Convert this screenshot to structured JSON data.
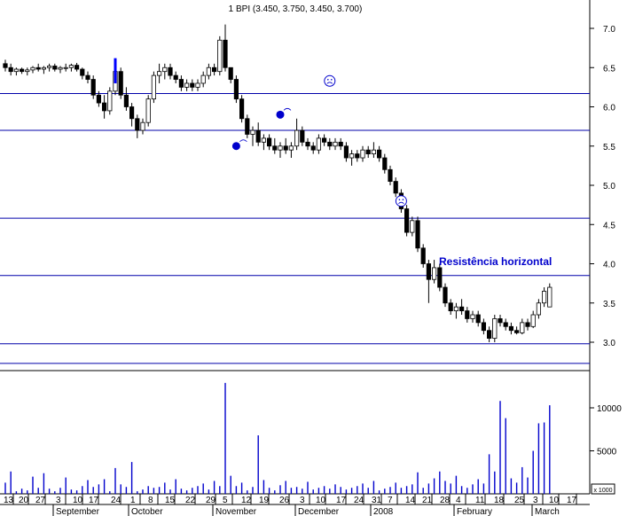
{
  "chart_data": {
    "type": "candlestick",
    "title": "1 BPI (3.450, 3.750, 3.450, 3.700)",
    "price_axis": {
      "min": 2.7,
      "max": 7.2,
      "ticks": [
        "7.0",
        "6.5",
        "6.0",
        "5.5",
        "5.0",
        "4.5",
        "4.0",
        "3.5",
        "3.0"
      ]
    },
    "volume_axis": {
      "min": 0,
      "max": 13500,
      "ticks": [
        "10000",
        "5000"
      ],
      "unit_label": "x 1000"
    },
    "date_labels": [
      "13",
      "20",
      "27",
      "3",
      "10",
      "17",
      "24",
      "1",
      "8",
      "15",
      "22",
      "29",
      "5",
      "12",
      "19",
      "26",
      "3",
      "10",
      "17",
      "24",
      "31",
      "7",
      "14",
      "21",
      "28",
      "4",
      "11",
      "18",
      "25",
      "3",
      "10",
      "17"
    ],
    "month_labels": [
      "September",
      "October",
      "November",
      "December",
      "2008",
      "February",
      "March"
    ],
    "horizontal_lines": [
      6.17,
      5.7,
      4.58,
      3.85,
      2.98,
      2.73
    ],
    "annotation": "Resistência horizontal",
    "signals": [
      {
        "type": "buy-dot",
        "bar": 42,
        "price": 5.5
      },
      {
        "type": "buy-dot",
        "bar": 50,
        "price": 5.9
      },
      {
        "type": "frown-face",
        "bar": 59,
        "price": 6.33
      },
      {
        "type": "frown-face",
        "bar": 72,
        "price": 4.8
      }
    ],
    "markers": [
      {
        "type": "blue-bar",
        "bar": 20,
        "low": 6.3,
        "high": 6.62
      }
    ],
    "candles": [
      [
        6.55,
        6.6,
        6.45,
        6.5
      ],
      [
        6.5,
        6.55,
        6.4,
        6.45
      ],
      [
        6.45,
        6.5,
        6.4,
        6.48
      ],
      [
        6.48,
        6.5,
        6.42,
        6.45
      ],
      [
        6.45,
        6.5,
        6.4,
        6.47
      ],
      [
        6.47,
        6.52,
        6.43,
        6.5
      ],
      [
        6.5,
        6.55,
        6.45,
        6.48
      ],
      [
        6.48,
        6.52,
        6.42,
        6.5
      ],
      [
        6.5,
        6.55,
        6.45,
        6.52
      ],
      [
        6.52,
        6.55,
        6.45,
        6.48
      ],
      [
        6.48,
        6.52,
        6.43,
        6.5
      ],
      [
        6.5,
        6.55,
        6.45,
        6.5
      ],
      [
        6.5,
        6.55,
        6.45,
        6.53
      ],
      [
        6.53,
        6.56,
        6.45,
        6.48
      ],
      [
        6.48,
        6.5,
        6.35,
        6.4
      ],
      [
        6.4,
        6.45,
        6.3,
        6.35
      ],
      [
        6.35,
        6.4,
        6.1,
        6.15
      ],
      [
        6.15,
        6.2,
        6.0,
        6.05
      ],
      [
        6.05,
        6.15,
        5.85,
        5.95
      ],
      [
        5.95,
        6.25,
        5.9,
        6.2
      ],
      [
        6.2,
        6.5,
        6.15,
        6.45
      ],
      [
        6.45,
        6.5,
        6.1,
        6.15
      ],
      [
        6.15,
        6.25,
        5.95,
        6.0
      ],
      [
        6.0,
        6.05,
        5.75,
        5.85
      ],
      [
        5.85,
        5.9,
        5.6,
        5.7
      ],
      [
        5.7,
        5.85,
        5.65,
        5.8
      ],
      [
        5.8,
        6.15,
        5.75,
        6.1
      ],
      [
        6.1,
        6.45,
        6.05,
        6.4
      ],
      [
        6.4,
        6.55,
        6.3,
        6.45
      ],
      [
        6.45,
        6.55,
        6.35,
        6.5
      ],
      [
        6.5,
        6.55,
        6.35,
        6.4
      ],
      [
        6.4,
        6.45,
        6.3,
        6.35
      ],
      [
        6.35,
        6.4,
        6.2,
        6.25
      ],
      [
        6.25,
        6.35,
        6.2,
        6.3
      ],
      [
        6.3,
        6.35,
        6.2,
        6.25
      ],
      [
        6.25,
        6.35,
        6.2,
        6.3
      ],
      [
        6.3,
        6.45,
        6.25,
        6.4
      ],
      [
        6.4,
        6.55,
        6.35,
        6.5
      ],
      [
        6.5,
        6.55,
        6.4,
        6.45
      ],
      [
        6.45,
        6.9,
        6.4,
        6.85
      ],
      [
        6.85,
        7.05,
        6.45,
        6.5
      ],
      [
        6.5,
        6.5,
        6.3,
        6.35
      ],
      [
        6.35,
        6.4,
        6.05,
        6.1
      ],
      [
        6.1,
        6.15,
        5.8,
        5.85
      ],
      [
        5.85,
        5.9,
        5.6,
        5.65
      ],
      [
        5.65,
        5.75,
        5.5,
        5.7
      ],
      [
        5.7,
        5.8,
        5.5,
        5.55
      ],
      [
        5.55,
        5.65,
        5.45,
        5.6
      ],
      [
        5.6,
        5.65,
        5.45,
        5.5
      ],
      [
        5.5,
        5.6,
        5.4,
        5.45
      ],
      [
        5.45,
        5.55,
        5.35,
        5.5
      ],
      [
        5.5,
        5.6,
        5.4,
        5.45
      ],
      [
        5.45,
        5.55,
        5.35,
        5.5
      ],
      [
        5.5,
        5.85,
        5.45,
        5.7
      ],
      [
        5.7,
        5.75,
        5.5,
        5.55
      ],
      [
        5.55,
        5.6,
        5.45,
        5.5
      ],
      [
        5.5,
        5.55,
        5.4,
        5.45
      ],
      [
        5.45,
        5.65,
        5.4,
        5.6
      ],
      [
        5.6,
        5.65,
        5.5,
        5.55
      ],
      [
        5.55,
        5.6,
        5.45,
        5.5
      ],
      [
        5.5,
        5.6,
        5.45,
        5.55
      ],
      [
        5.55,
        5.6,
        5.45,
        5.5
      ],
      [
        5.5,
        5.55,
        5.3,
        5.35
      ],
      [
        5.35,
        5.45,
        5.25,
        5.4
      ],
      [
        5.4,
        5.45,
        5.3,
        5.35
      ],
      [
        5.35,
        5.5,
        5.3,
        5.45
      ],
      [
        5.45,
        5.5,
        5.35,
        5.4
      ],
      [
        5.4,
        5.55,
        5.35,
        5.45
      ],
      [
        5.45,
        5.5,
        5.3,
        5.35
      ],
      [
        5.35,
        5.4,
        5.15,
        5.2
      ],
      [
        5.2,
        5.25,
        5.0,
        5.05
      ],
      [
        5.05,
        5.1,
        4.85,
        4.9
      ],
      [
        4.9,
        4.95,
        4.65,
        4.7
      ],
      [
        4.7,
        4.75,
        4.35,
        4.4
      ],
      [
        4.4,
        4.6,
        4.35,
        4.55
      ],
      [
        4.55,
        4.6,
        4.15,
        4.2
      ],
      [
        4.2,
        4.25,
        3.95,
        4.0
      ],
      [
        4.0,
        4.05,
        3.5,
        3.8
      ],
      [
        3.8,
        4.05,
        3.75,
        3.95
      ],
      [
        3.95,
        4.0,
        3.65,
        3.7
      ],
      [
        3.7,
        3.75,
        3.45,
        3.5
      ],
      [
        3.5,
        3.55,
        3.35,
        3.4
      ],
      [
        3.4,
        3.5,
        3.3,
        3.45
      ],
      [
        3.45,
        3.55,
        3.35,
        3.4
      ],
      [
        3.4,
        3.45,
        3.25,
        3.3
      ],
      [
        3.3,
        3.4,
        3.25,
        3.35
      ],
      [
        3.35,
        3.4,
        3.2,
        3.25
      ],
      [
        3.25,
        3.3,
        3.1,
        3.15
      ],
      [
        3.15,
        3.2,
        3.0,
        3.05
      ],
      [
        3.05,
        3.35,
        3.0,
        3.3
      ],
      [
        3.3,
        3.35,
        3.2,
        3.25
      ],
      [
        3.25,
        3.3,
        3.15,
        3.2
      ],
      [
        3.2,
        3.25,
        3.1,
        3.15
      ],
      [
        3.15,
        3.2,
        3.1,
        3.12
      ],
      [
        3.12,
        3.3,
        3.1,
        3.25
      ],
      [
        3.25,
        3.3,
        3.15,
        3.2
      ],
      [
        3.2,
        3.4,
        3.18,
        3.35
      ],
      [
        3.35,
        3.55,
        3.3,
        3.5
      ],
      [
        3.5,
        3.7,
        3.45,
        3.65
      ],
      [
        3.45,
        3.75,
        3.45,
        3.7
      ]
    ],
    "volumes": [
      1300,
      2600,
      300,
      600,
      400,
      2000,
      700,
      2400,
      600,
      300,
      700,
      1900,
      500,
      400,
      900,
      1600,
      800,
      1100,
      1700,
      300,
      3000,
      1100,
      800,
      3700,
      300,
      500,
      900,
      700,
      800,
      1300,
      500,
      1700,
      600,
      400,
      700,
      900,
      1200,
      500,
      1500,
      900,
      12900,
      2100,
      900,
      1300,
      400,
      800,
      6800,
      1600,
      700,
      400,
      1000,
      1500,
      700,
      800,
      600,
      1400,
      500,
      700,
      900,
      600,
      1100,
      800,
      500,
      700,
      900,
      1200,
      700,
      1500,
      400,
      600,
      800,
      1300,
      700,
      900,
      1100,
      2500,
      700,
      1200,
      1800,
      2600,
      1500,
      1200,
      2100,
      900,
      700,
      1100,
      1700,
      1200,
      4600,
      2600,
      10800,
      8800,
      1800,
      1300,
      3100,
      1900,
      5000,
      8200,
      8300,
      10300
    ]
  }
}
